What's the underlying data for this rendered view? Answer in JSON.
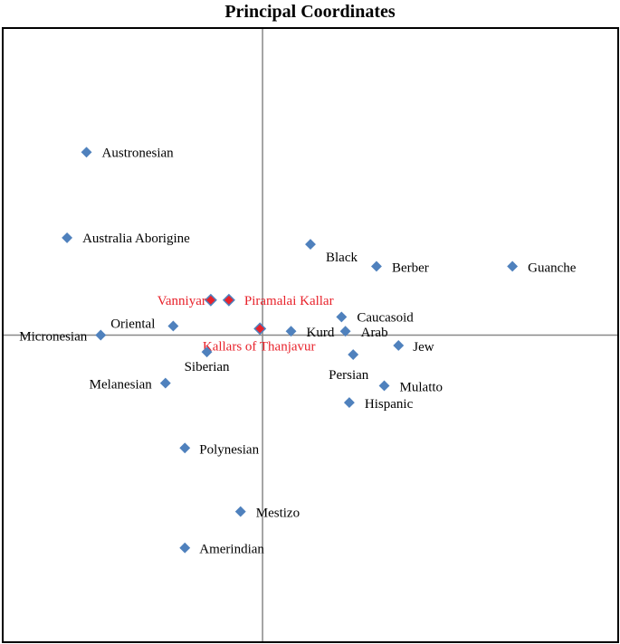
{
  "chart_data": {
    "type": "scatter",
    "title": "Principal Coordinates",
    "xlabel": "",
    "ylabel": "",
    "xlim": [
      -100,
      137
    ],
    "ylim": [
      -118,
      118
    ],
    "grid": false,
    "axes_cross_at_origin": true,
    "colors": {
      "default_marker": "#4f81bd",
      "highlight_marker": "#e8222b",
      "default_label": "#000000",
      "highlight_label": "#e8222b",
      "axis_line": "#888888",
      "frame": "#000000"
    },
    "points": [
      {
        "label": "Austronesian",
        "x": -68,
        "y": 70.5,
        "highlight": false
      },
      {
        "label": "Australia Aborigine",
        "x": -75.5,
        "y": 37.5,
        "highlight": false
      },
      {
        "label": "Black",
        "x": 18.5,
        "y": 35,
        "highlight": false
      },
      {
        "label": "Berber",
        "x": 44,
        "y": 26.5,
        "highlight": false
      },
      {
        "label": "Guanche",
        "x": 96.5,
        "y": 26.5,
        "highlight": false
      },
      {
        "label": "Vanniyar",
        "x": -20,
        "y": 13.5,
        "highlight": true
      },
      {
        "label": "Piramalai Kallar",
        "x": -13,
        "y": 13.5,
        "highlight": true
      },
      {
        "label": "Caucasoid",
        "x": 30.5,
        "y": 7,
        "highlight": false
      },
      {
        "label": "Oriental",
        "x": -34.5,
        "y": 3.5,
        "highlight": false
      },
      {
        "label": "Kallars of Thanjavur",
        "x": -1,
        "y": 2.5,
        "highlight": true
      },
      {
        "label": "Kurd",
        "x": 11,
        "y": 1.5,
        "highlight": false
      },
      {
        "label": "Arab",
        "x": 32,
        "y": 1.5,
        "highlight": false
      },
      {
        "label": "Micronesian",
        "x": -62.5,
        "y": 0,
        "highlight": false
      },
      {
        "label": "Jew",
        "x": 52.5,
        "y": -4,
        "highlight": false
      },
      {
        "label": "Siberian",
        "x": -21.5,
        "y": -6.5,
        "highlight": false
      },
      {
        "label": "Persian",
        "x": 35,
        "y": -7.5,
        "highlight": false
      },
      {
        "label": "Melanesian",
        "x": -37.5,
        "y": -18.5,
        "highlight": false
      },
      {
        "label": "Mulatto",
        "x": 47,
        "y": -19.5,
        "highlight": false
      },
      {
        "label": "Hispanic",
        "x": 33.5,
        "y": -26,
        "highlight": false
      },
      {
        "label": "Polynesian",
        "x": -30,
        "y": -43.5,
        "highlight": false
      },
      {
        "label": "Mestizo",
        "x": -8.5,
        "y": -68,
        "highlight": false
      },
      {
        "label": "Amerindian",
        "x": -30,
        "y": -82,
        "highlight": false
      }
    ]
  }
}
